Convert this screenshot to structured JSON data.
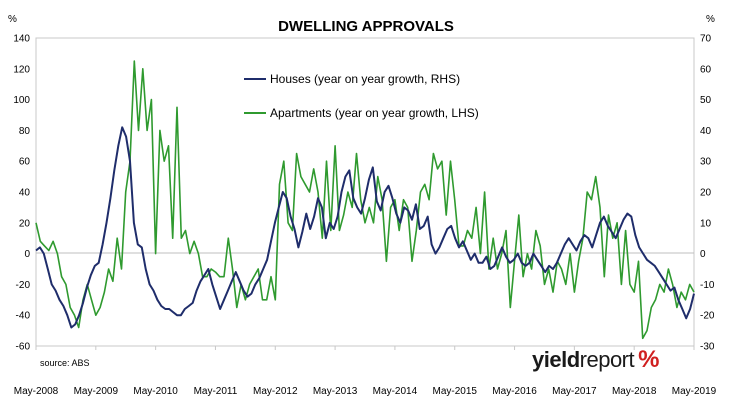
{
  "chart_data": {
    "type": "line",
    "title": "DWELLING APPROVALS",
    "left_axis": {
      "unit": "%",
      "ticks": [
        140,
        120,
        100,
        80,
        60,
        40,
        20,
        0,
        -20,
        -40,
        -60
      ],
      "range": [
        -60,
        140
      ]
    },
    "right_axis": {
      "unit": "%",
      "ticks": [
        70,
        60,
        50,
        40,
        30,
        20,
        10,
        0,
        -10,
        -20,
        -30
      ],
      "range": [
        -30,
        70
      ]
    },
    "x_ticks": [
      "May-2008",
      "May-2009",
      "May-2010",
      "May-2011",
      "May-2012",
      "May-2013",
      "May-2014",
      "May-2015",
      "May-2016",
      "May-2017",
      "May-2018",
      "May-2019"
    ],
    "grid": false,
    "legend_position": "top-center",
    "series": [
      {
        "name": "Houses (year on year growth, RHS)",
        "axis": "right",
        "color": "#1f2d6b",
        "values": [
          1,
          2,
          0,
          -5,
          -10,
          -12,
          -15,
          -17,
          -20,
          -24,
          -23,
          -20,
          -16,
          -11,
          -7,
          -4,
          -3,
          3,
          10,
          18,
          27,
          35,
          41,
          38,
          30,
          10,
          3,
          2,
          -5,
          -10,
          -12,
          -15,
          -17,
          -18,
          -18,
          -19,
          -20,
          -20,
          -18,
          -17,
          -16,
          -12,
          -9,
          -7,
          -5,
          -10,
          -14,
          -18,
          -15,
          -12,
          -9,
          -6,
          -9,
          -12,
          -14,
          -13,
          -10,
          -8,
          -5,
          -2,
          4,
          10,
          15,
          20,
          18,
          12,
          8,
          2,
          7,
          13,
          8,
          12,
          18,
          15,
          5,
          10,
          8,
          12,
          20,
          25,
          27,
          18,
          15,
          13,
          18,
          24,
          28,
          17,
          14,
          20,
          22,
          18,
          13,
          10,
          15,
          14,
          11,
          16,
          8,
          9,
          12,
          3,
          0,
          2,
          5,
          8,
          9,
          5,
          2,
          4,
          1,
          -2,
          0,
          -3,
          -3,
          -1,
          -5,
          -4,
          -1,
          2,
          -1,
          -3,
          -2,
          0,
          -3,
          -4,
          -3,
          0,
          -2,
          -4,
          -6,
          -4,
          -5,
          -3,
          0,
          3,
          5,
          3,
          1,
          4,
          6,
          5,
          2,
          6,
          10,
          12,
          9,
          7,
          5,
          8,
          11,
          13,
          12,
          6,
          2,
          0,
          -2,
          -3,
          -4,
          -6,
          -8,
          -10,
          -12,
          -11,
          -15,
          -18,
          -21,
          -18,
          -13
        ],
        "_note": ""
      },
      {
        "name": "Apartments (year on year growth, LHS)",
        "axis": "left",
        "color": "#2f9a2f",
        "values": [
          20,
          8,
          5,
          2,
          8,
          0,
          -15,
          -20,
          -35,
          -40,
          -48,
          -30,
          -20,
          -30,
          -40,
          -35,
          -25,
          -10,
          -18,
          10,
          -10,
          40,
          60,
          125,
          80,
          120,
          80,
          100,
          0,
          80,
          60,
          70,
          10,
          95,
          10,
          15,
          0,
          8,
          0,
          -15,
          -15,
          -10,
          -12,
          -15,
          -15,
          10,
          -10,
          -35,
          -20,
          -30,
          -20,
          -15,
          -10,
          -30,
          -30,
          -15,
          -30,
          45,
          60,
          20,
          15,
          65,
          50,
          45,
          40,
          55,
          40,
          10,
          60,
          15,
          70,
          15,
          25,
          40,
          30,
          65,
          35,
          20,
          30,
          20,
          50,
          35,
          -5,
          30,
          35,
          15,
          35,
          30,
          -5,
          15,
          40,
          45,
          35,
          65,
          55,
          60,
          25,
          60,
          35,
          5,
          5,
          15,
          10,
          30,
          0,
          40,
          -10,
          10,
          -10,
          0,
          15,
          -35,
          -5,
          25,
          -15,
          0,
          -10,
          15,
          5,
          -20,
          -10,
          -25,
          -5,
          -10,
          -20,
          0,
          -25,
          -5,
          10,
          40,
          35,
          50,
          30,
          -15,
          25,
          10,
          20,
          -20,
          15,
          -20,
          -25,
          -5,
          -55,
          -50,
          -35,
          -30,
          -20,
          -25,
          -10,
          -20,
          -35,
          -25,
          -30,
          -20,
          -25
        ]
      }
    ],
    "source": "source: ABS"
  },
  "logo": {
    "part1": "yield",
    "part2": "report",
    "symbol": "%"
  }
}
